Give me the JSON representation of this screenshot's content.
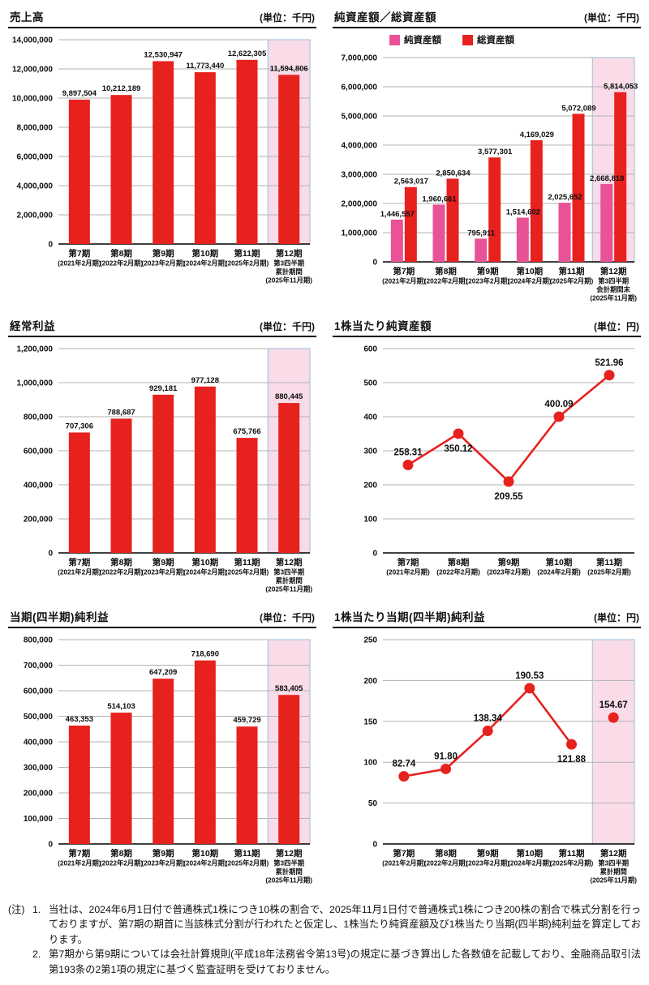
{
  "colors": {
    "red": "#e7211e",
    "pink": "#e95296",
    "highlight_fill": "#fadce9",
    "highlight_border": "#aac4dc",
    "grid": "#b2b2b2",
    "axis": "#000000"
  },
  "chart_data": [
    {
      "type": "bar",
      "title": "売上高",
      "unit": "(単位：千円)",
      "categories": [
        [
          "第7期",
          "(2021年2月期)"
        ],
        [
          "第8期",
          "(2022年2月期)"
        ],
        [
          "第9期",
          "(2023年2月期)"
        ],
        [
          "第10期",
          "(2024年2月期)"
        ],
        [
          "第11期",
          "(2025年2月期)"
        ],
        [
          "第12期",
          "第3四半期",
          "累計期間",
          "(2025年11月期)"
        ]
      ],
      "values": [
        9897504,
        10212189,
        12530947,
        11773440,
        12622305,
        11594806
      ],
      "ylim": [
        0,
        14000000
      ],
      "ytick": 2000000,
      "highlight_last": true
    },
    {
      "type": "grouped-bar",
      "title": "純資産額／総資産額",
      "unit": "(単位：千円)",
      "legend": [
        "純資産額",
        "総資産額"
      ],
      "categories": [
        [
          "第7期",
          "(2021年2月期)"
        ],
        [
          "第8期",
          "(2022年2月期)"
        ],
        [
          "第9期",
          "(2023年2月期)"
        ],
        [
          "第10期",
          "(2024年2月期)"
        ],
        [
          "第11期",
          "(2025年2月期)"
        ],
        [
          "第12期",
          "第3四半期",
          "会計期間末",
          "(2025年11月期)"
        ]
      ],
      "series": [
        {
          "name": "純資産額",
          "values": [
            1446557,
            1960661,
            795911,
            1514602,
            2025652,
            2668818
          ]
        },
        {
          "name": "総資産額",
          "values": [
            2563017,
            2850634,
            3577301,
            4169029,
            5072089,
            5814053
          ]
        }
      ],
      "ylim": [
        0,
        7000000
      ],
      "ytick": 1000000,
      "highlight_last": true
    },
    {
      "type": "bar",
      "title": "経常利益",
      "unit": "(単位：千円)",
      "categories": [
        [
          "第7期",
          "(2021年2月期)"
        ],
        [
          "第8期",
          "(2022年2月期)"
        ],
        [
          "第9期",
          "(2023年2月期)"
        ],
        [
          "第10期",
          "(2024年2月期)"
        ],
        [
          "第11期",
          "(2025年2月期)"
        ],
        [
          "第12期",
          "第3四半期",
          "累計期間",
          "(2025年11月期)"
        ]
      ],
      "values": [
        707306,
        788687,
        929181,
        977128,
        675766,
        880445
      ],
      "ylim": [
        0,
        1200000
      ],
      "ytick": 200000,
      "highlight_last": true
    },
    {
      "type": "line",
      "title": "1株当たり純資産額",
      "unit": "(単位：円)",
      "categories": [
        [
          "第7期",
          "(2021年2月期)"
        ],
        [
          "第8期",
          "(2022年2月期)"
        ],
        [
          "第9期",
          "(2023年2月期)"
        ],
        [
          "第10期",
          "(2024年2月期)"
        ],
        [
          "第11期",
          "(2025年2月期)"
        ]
      ],
      "values": [
        258.31,
        350.12,
        209.55,
        400.09,
        521.96
      ],
      "decimals": 2,
      "label_pos": [
        "above",
        "below",
        "below",
        "above",
        "above"
      ],
      "ylim": [
        0,
        600
      ],
      "ytick": 100,
      "highlight_last": false
    },
    {
      "type": "bar",
      "title": "当期(四半期)純利益",
      "unit": "(単位：千円)",
      "categories": [
        [
          "第7期",
          "(2021年2月期)"
        ],
        [
          "第8期",
          "(2022年2月期)"
        ],
        [
          "第9期",
          "(2023年2月期)"
        ],
        [
          "第10期",
          "(2024年2月期)"
        ],
        [
          "第11期",
          "(2025年2月期)"
        ],
        [
          "第12期",
          "第3四半期",
          "累計期間",
          "(2025年11月期)"
        ]
      ],
      "values": [
        463353,
        514103,
        647209,
        718690,
        459729,
        583405
      ],
      "ylim": [
        0,
        800000
      ],
      "ytick": 100000,
      "highlight_last": true
    },
    {
      "type": "line",
      "title": "1株当たり当期(四半期)純利益",
      "unit": "(単位：円)",
      "categories": [
        [
          "第7期",
          "(2021年2月期)"
        ],
        [
          "第8期",
          "(2022年2月期)"
        ],
        [
          "第9期",
          "(2023年2月期)"
        ],
        [
          "第10期",
          "(2024年2月期)"
        ],
        [
          "第11期",
          "(2025年2月期)"
        ],
        [
          "第12期",
          "第3四半期",
          "累計期間",
          "(2025年11月期)"
        ]
      ],
      "values": [
        82.74,
        91.8,
        138.34,
        190.53,
        121.88,
        154.67
      ],
      "decimals": 2,
      "connect_count": 5,
      "label_pos": [
        "above",
        "above",
        "above",
        "above",
        "below",
        "above"
      ],
      "ylim": [
        0,
        250
      ],
      "ytick": 50,
      "highlight_last": true
    }
  ],
  "notes": {
    "label": "(注)",
    "items": [
      {
        "num": "1.",
        "text": "当社は、2024年6月1日付で普通株式1株につき10株の割合で、2025年11月1日付で普通株式1株につき200株の割合で株式分割を行っておりますが、第7期の期首に当該株式分割が行われたと仮定し、1株当たり純資産額及び1株当たり当期(四半期)純利益を算定しております。"
      },
      {
        "num": "2.",
        "text": "第7期から第9期については会社計算規則(平成18年法務省令第13号)の規定に基づき算出した各数値を記載しており、金融商品取引法第193条の2第1項の規定に基づく監査証明を受けておりません。"
      }
    ]
  }
}
